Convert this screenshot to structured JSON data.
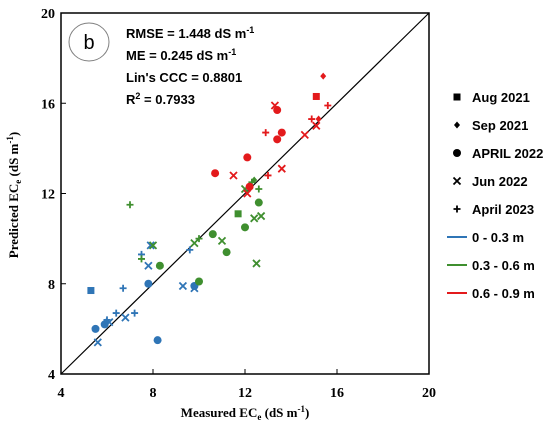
{
  "chart_data": {
    "type": "scatter",
    "panel_label": "b",
    "xlabel_main": "Measured EC",
    "xlabel_sub": "e",
    "xlabel_unit": " (dS m",
    "xlabel_unit_sup": "-1",
    "xlabel_close": ")",
    "ylabel_main": "Predicted EC",
    "ylabel_sub": "e",
    "ylabel_unit": " (dS m",
    "ylabel_unit_sup": "-1",
    "ylabel_close": ")",
    "xlim": [
      4,
      20
    ],
    "ylim": [
      4,
      20
    ],
    "x_ticks": [
      "4",
      "8",
      "12",
      "16",
      "20"
    ],
    "y_ticks": [
      "4",
      "8",
      "12",
      "16",
      "20"
    ],
    "reference_line": "1:1",
    "stats": {
      "rmse": "RMSE = 1.448 dS m",
      "rmse_sup": "-1",
      "me": "ME = 0.245 dS m",
      "me_sup": "-1",
      "ccc": "Lin's CCC = 0.8801",
      "r2_base": "R",
      "r2_sup": "2",
      "r2_rest": " = 0.7933"
    },
    "legend": {
      "markers": [
        {
          "shape": "square",
          "label": "Aug 2021"
        },
        {
          "shape": "diamond",
          "label": "Sep 2021"
        },
        {
          "shape": "circle",
          "label": "APRIL 2022"
        },
        {
          "shape": "x",
          "label": "Jun 2022"
        },
        {
          "shape": "plus",
          "label": "April 2023"
        }
      ],
      "depths": [
        {
          "label": "0 - 0.3 m",
          "color": "#2f75b6"
        },
        {
          "label": "0.3 - 0.6 m",
          "color": "#3f8f2f"
        },
        {
          "label": "0.6 - 0.9 m",
          "color": "#e31a1c"
        }
      ]
    },
    "series": [
      {
        "shape": "square",
        "depth": 0,
        "points": [
          [
            5.3,
            7.7
          ]
        ]
      },
      {
        "shape": "circle",
        "depth": 0,
        "points": [
          [
            5.5,
            6.0
          ],
          [
            5.9,
            6.2
          ],
          [
            7.8,
            8.0
          ],
          [
            8.2,
            5.5
          ],
          [
            9.8,
            7.9
          ]
        ]
      },
      {
        "shape": "x",
        "depth": 0,
        "points": [
          [
            5.6,
            5.4
          ],
          [
            6.1,
            6.3
          ],
          [
            6.8,
            6.5
          ],
          [
            7.8,
            8.8
          ],
          [
            7.9,
            9.7
          ],
          [
            9.3,
            7.9
          ],
          [
            9.8,
            7.8
          ]
        ]
      },
      {
        "shape": "plus",
        "depth": 0,
        "points": [
          [
            6.0,
            6.4
          ],
          [
            6.4,
            6.7
          ],
          [
            6.7,
            7.8
          ],
          [
            7.2,
            6.7
          ],
          [
            7.5,
            9.3
          ],
          [
            9.6,
            9.5
          ]
        ]
      },
      {
        "shape": "square",
        "depth": 1,
        "points": [
          [
            11.7,
            11.1
          ]
        ]
      },
      {
        "shape": "diamond",
        "depth": 1,
        "points": [
          [
            12.4,
            12.6
          ]
        ]
      },
      {
        "shape": "circle",
        "depth": 1,
        "points": [
          [
            8.3,
            8.8
          ],
          [
            10.0,
            8.1
          ],
          [
            10.6,
            10.2
          ],
          [
            11.2,
            9.4
          ],
          [
            12.0,
            10.5
          ],
          [
            12.6,
            11.6
          ]
        ]
      },
      {
        "shape": "x",
        "depth": 1,
        "points": [
          [
            8.0,
            9.7
          ],
          [
            9.8,
            9.8
          ],
          [
            11.0,
            9.9
          ],
          [
            12.0,
            12.2
          ],
          [
            12.4,
            10.9
          ],
          [
            12.5,
            8.9
          ],
          [
            12.7,
            11.0
          ]
        ]
      },
      {
        "shape": "plus",
        "depth": 1,
        "points": [
          [
            7.0,
            11.5
          ],
          [
            7.5,
            9.1
          ],
          [
            10.0,
            10.0
          ],
          [
            12.3,
            12.5
          ],
          [
            12.6,
            12.2
          ]
        ]
      },
      {
        "shape": "square",
        "depth": 2,
        "points": [
          [
            15.1,
            16.3
          ]
        ]
      },
      {
        "shape": "diamond",
        "depth": 2,
        "points": [
          [
            15.4,
            17.2
          ],
          [
            15.2,
            15.3
          ]
        ]
      },
      {
        "shape": "circle",
        "depth": 2,
        "points": [
          [
            10.7,
            12.9
          ],
          [
            12.1,
            13.6
          ],
          [
            13.4,
            15.7
          ],
          [
            13.4,
            14.4
          ],
          [
            13.6,
            14.7
          ],
          [
            12.2,
            12.3
          ]
        ]
      },
      {
        "shape": "x",
        "depth": 2,
        "points": [
          [
            11.5,
            12.8
          ],
          [
            12.1,
            12.0
          ],
          [
            13.3,
            15.9
          ],
          [
            13.6,
            13.1
          ],
          [
            14.6,
            14.6
          ],
          [
            15.1,
            15.0
          ]
        ]
      },
      {
        "shape": "plus",
        "depth": 2,
        "points": [
          [
            12.9,
            14.7
          ],
          [
            13.0,
            12.8
          ],
          [
            14.9,
            15.3
          ],
          [
            15.6,
            15.9
          ]
        ]
      }
    ]
  }
}
